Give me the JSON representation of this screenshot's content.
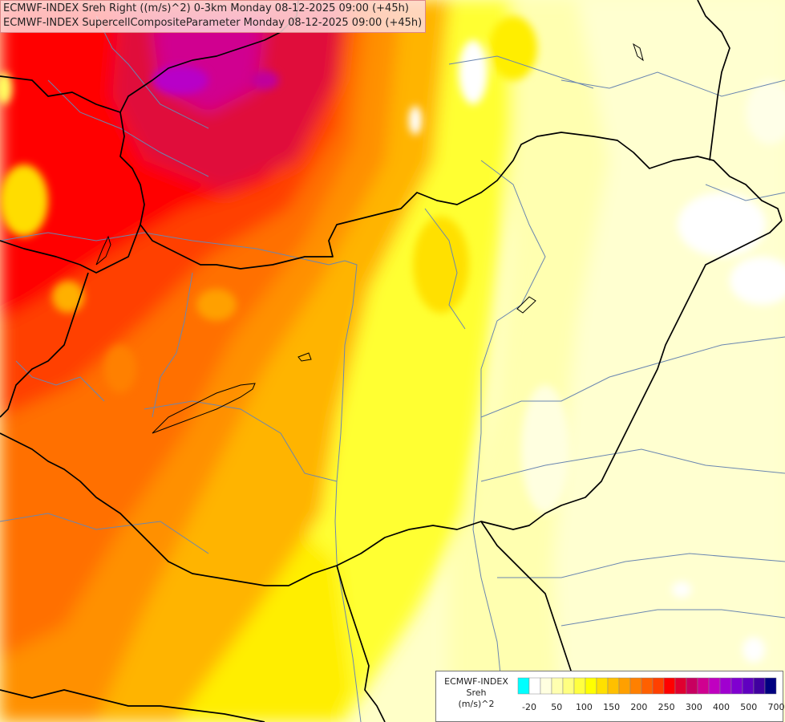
{
  "header": {
    "line1": "ECMWF-INDEX Sreh Right ((m/s)^2) 0-3km Monday 08-12-2025 09:00 (+45h)",
    "line2": "ECMWF-INDEX SupercellCompositeParameter Monday 08-12-2025 09:00 (+45h)"
  },
  "legend": {
    "title_line1": "ECMWF-INDEX",
    "title_line2": "Sreh",
    "title_line3": "(m/s)^2",
    "colors": [
      "#00ffff",
      "#ffffff",
      "#ffffe0",
      "#ffffb0",
      "#ffff80",
      "#ffff40",
      "#ffff00",
      "#ffe000",
      "#ffc000",
      "#ffa000",
      "#ff8000",
      "#ff6000",
      "#ff4000",
      "#ff0000",
      "#e00030",
      "#c80060",
      "#d00090",
      "#c000c0",
      "#a000d0",
      "#8000d0",
      "#6000c0",
      "#4000a0",
      "#000080"
    ],
    "labels": [
      "-20",
      "50",
      "100",
      "150",
      "200",
      "250",
      "300",
      "400",
      "500",
      "700"
    ]
  }
}
